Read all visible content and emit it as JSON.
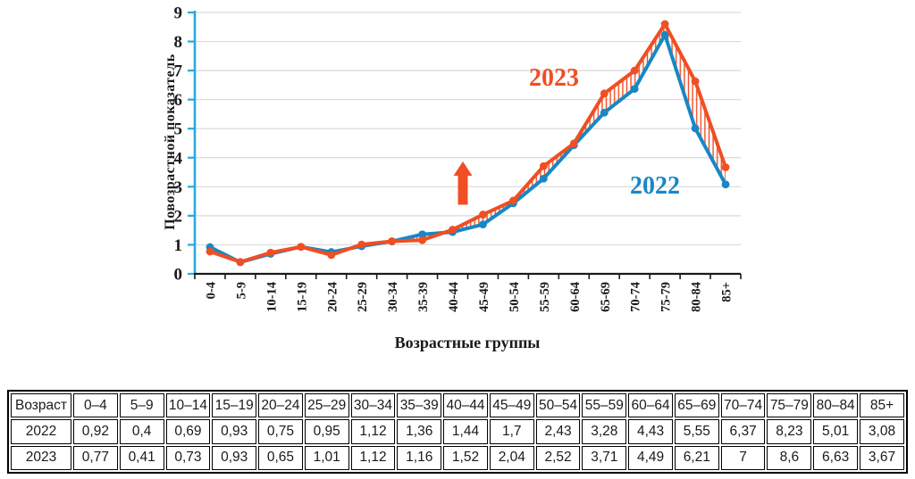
{
  "chart": {
    "y_axis_title": "Повозрастной показатель",
    "x_axis_title": "Возрастные группы",
    "annotations": {
      "series_2023_label": "2023",
      "series_2022_label": "2022"
    },
    "colors": {
      "line_2022": "#1787C6",
      "line_2023": "#F04E23",
      "hatch": "#F04E23",
      "arrow": "#F04E23",
      "y_axis": "#2AA7DF",
      "x_axis": "#1a1a1a",
      "grid": "#D9D9D9"
    }
  },
  "chart_data": {
    "type": "line",
    "title": "",
    "xlabel": "Возрастные группы",
    "ylabel": "Повозрастной показатель",
    "categories": [
      "0-4",
      "5-9",
      "10-14",
      "15-19",
      "20-24",
      "25-29",
      "30-34",
      "35-39",
      "40-44",
      "45-49",
      "50-54",
      "55-59",
      "60-64",
      "65-69",
      "70-74",
      "75-79",
      "80-84",
      "85+"
    ],
    "series": [
      {
        "name": "2022",
        "values": [
          0.92,
          0.4,
          0.69,
          0.93,
          0.75,
          0.95,
          1.12,
          1.36,
          1.44,
          1.7,
          2.43,
          3.28,
          4.43,
          5.55,
          6.37,
          8.23,
          5.01,
          3.08
        ]
      },
      {
        "name": "2023",
        "values": [
          0.77,
          0.41,
          0.73,
          0.93,
          0.65,
          1.01,
          1.12,
          1.16,
          1.52,
          2.04,
          2.52,
          3.71,
          4.49,
          6.21,
          7,
          8.6,
          6.63,
          3.67
        ]
      }
    ],
    "ylim": [
      0,
      9
    ],
    "yticks": [
      0,
      1,
      2,
      3,
      4,
      5,
      6,
      7,
      8,
      9
    ],
    "grid": true,
    "legend_position": "inline-annotations",
    "fill_between": "hatched band between 2022 and 2023 lines",
    "annotation_arrow": "red block arrow pointing up near 40-44"
  },
  "table": {
    "header": [
      "Возраст",
      "0–4",
      "5–9",
      "10–14",
      "15–19",
      "20–24",
      "25–29",
      "30–34",
      "35–39",
      "40–44",
      "45–49",
      "50–54",
      "55–59",
      "60–64",
      "65–69",
      "70–74",
      "75–79",
      "80–84",
      "85+"
    ],
    "rows": [
      [
        "2022",
        "0,92",
        "0,4",
        "0,69",
        "0,93",
        "0,75",
        "0,95",
        "1,12",
        "1,36",
        "1,44",
        "1,7",
        "2,43",
        "3,28",
        "4,43",
        "5,55",
        "6,37",
        "8,23",
        "5,01",
        "3,08"
      ],
      [
        "2023",
        "0,77",
        "0,41",
        "0,73",
        "0,93",
        "0,65",
        "1,01",
        "1,12",
        "1,16",
        "1,52",
        "2,04",
        "2,52",
        "3,71",
        "4,49",
        "6,21",
        "7",
        "8,6",
        "6,63",
        "3,67"
      ]
    ]
  }
}
